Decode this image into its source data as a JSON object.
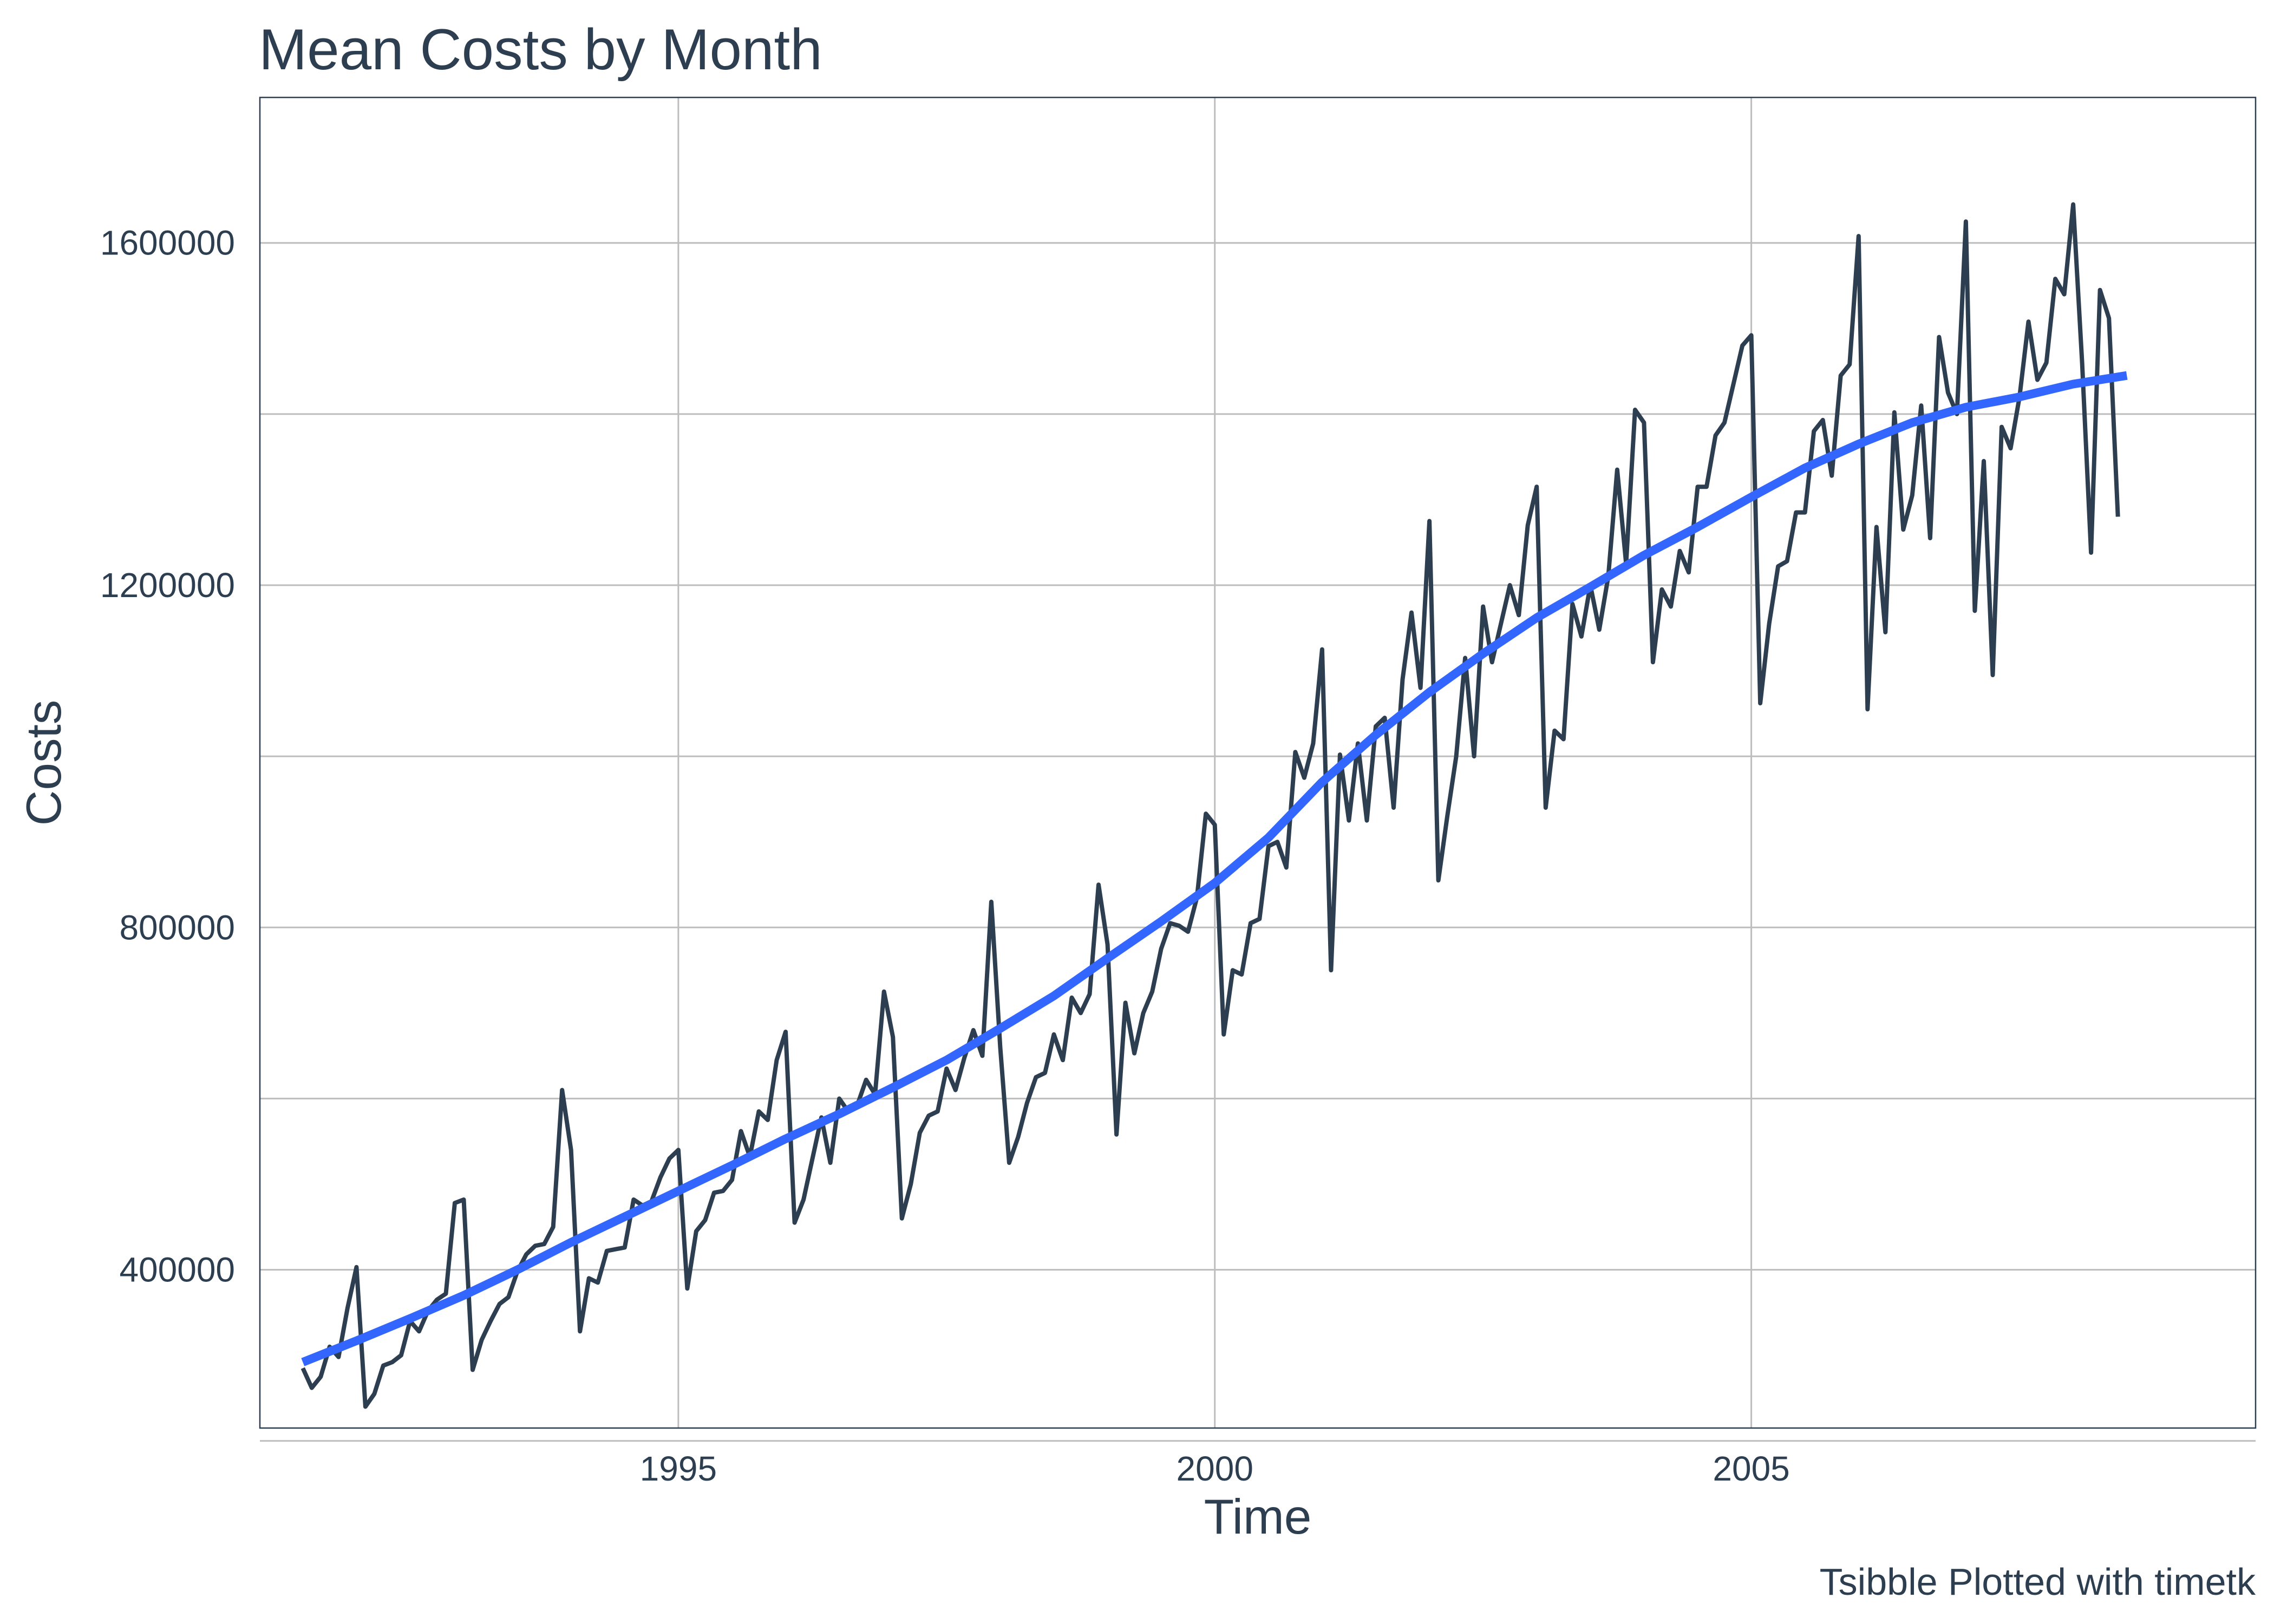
{
  "chart_data": {
    "type": "line",
    "title": "Mean Costs by Month",
    "xlabel": "Time",
    "ylabel": "Costs",
    "caption": "Tsibble Plotted with timetk",
    "xlim": [
      1991.1,
      2009.7
    ],
    "ylim": [
      215000,
      1770000
    ],
    "x_ticks": [
      1995,
      2000,
      2005
    ],
    "y_ticks": [
      400000,
      800000,
      1200000,
      1600000
    ],
    "y_minor_ticks": [
      200000,
      600000,
      1000000,
      1400000
    ],
    "grid": true,
    "legend": "none",
    "colors": {
      "series": "#2c3e50",
      "smooth": "#3366ff",
      "grid": "#bdbdbd",
      "text": "#2c3e50"
    },
    "series": [
      {
        "x_start": 1991.5,
        "x_step": 0.0833333,
        "values": [
          285000,
          262000,
          275000,
          310000,
          298000,
          355000,
          403000,
          240000,
          255000,
          288000,
          292000,
          300000,
          340000,
          328000,
          352000,
          365000,
          372000,
          478000,
          482000,
          283000,
          318000,
          340000,
          360000,
          368000,
          398000,
          418000,
          428000,
          430000,
          450000,
          610000,
          540000,
          328000,
          390000,
          385000,
          422000,
          424000,
          426000,
          482000,
          475000,
          480000,
          508000,
          530000,
          540000,
          378000,
          445000,
          458000,
          490000,
          492000,
          505000,
          562000,
          532000,
          585000,
          575000,
          645000,
          678000,
          455000,
          482000,
          530000,
          578000,
          525000,
          600000,
          585000,
          592000,
          622000,
          605000,
          725000,
          672000,
          460000,
          500000,
          560000,
          580000,
          585000,
          635000,
          610000,
          648000,
          680000,
          650000,
          830000,
          660000,
          525000,
          555000,
          595000,
          625000,
          630000,
          675000,
          645000,
          718000,
          700000,
          722000,
          850000,
          780000,
          558000,
          712000,
          653000,
          700000,
          725000,
          775000,
          805000,
          802000,
          795000,
          835000,
          933000,
          920000,
          675000,
          750000,
          745000,
          805000,
          810000,
          895000,
          900000,
          870000,
          1005000,
          975000,
          1015000,
          1125000,
          750000,
          1002000,
          925000,
          1015000,
          925000,
          1035000,
          1045000,
          940000,
          1090000,
          1168000,
          1080000,
          1275000,
          855000,
          930000,
          1000000,
          1115000,
          1000000,
          1175000,
          1110000,
          1155000,
          1200000,
          1165000,
          1270000,
          1315000,
          940000,
          1030000,
          1020000,
          1178000,
          1140000,
          1200000,
          1148000,
          1210000,
          1335000,
          1225000,
          1405000,
          1390000,
          1110000,
          1195000,
          1175000,
          1240000,
          1215000,
          1315000,
          1315000,
          1375000,
          1390000,
          1435000,
          1480000,
          1492000,
          1062000,
          1155000,
          1222000,
          1228000,
          1285000,
          1285000,
          1380000,
          1393000,
          1328000,
          1445000,
          1458000,
          1608000,
          1055000,
          1268000,
          1145000,
          1402000,
          1265000,
          1305000,
          1410000,
          1255000,
          1490000,
          1425000,
          1400000,
          1625000,
          1170000,
          1345000,
          1095000,
          1385000,
          1360000,
          1420000,
          1508000,
          1440000,
          1460000,
          1558000,
          1540000,
          1645000,
          1460000,
          1238000,
          1545000,
          1512000,
          1280000
        ]
      },
      {
        "x": [
          1991.5,
          1992.0,
          1992.5,
          1993.0,
          1993.5,
          1994.0,
          1994.5,
          1995.0,
          1995.5,
          1996.0,
          1996.5,
          1997.0,
          1997.5,
          1998.0,
          1998.5,
          1999.0,
          1999.5,
          2000.0,
          2000.5,
          2001.0,
          2001.5,
          2002.0,
          2002.5,
          2003.0,
          2003.5,
          2004.0,
          2004.5,
          2005.0,
          2005.5,
          2006.0,
          2006.5,
          2007.0,
          2007.5,
          2008.0,
          2008.5
        ],
        "values": [
          292000,
          317000,
          343000,
          370000,
          400000,
          432000,
          462000,
          492000,
          522000,
          553000,
          582000,
          613000,
          645000,
          682000,
          720000,
          764000,
          807000,
          852000,
          905000,
          970000,
          1025000,
          1075000,
          1120000,
          1162000,
          1198000,
          1235000,
          1268000,
          1303000,
          1337000,
          1365000,
          1390000,
          1408000,
          1420000,
          1435000,
          1445000
        ]
      }
    ]
  }
}
